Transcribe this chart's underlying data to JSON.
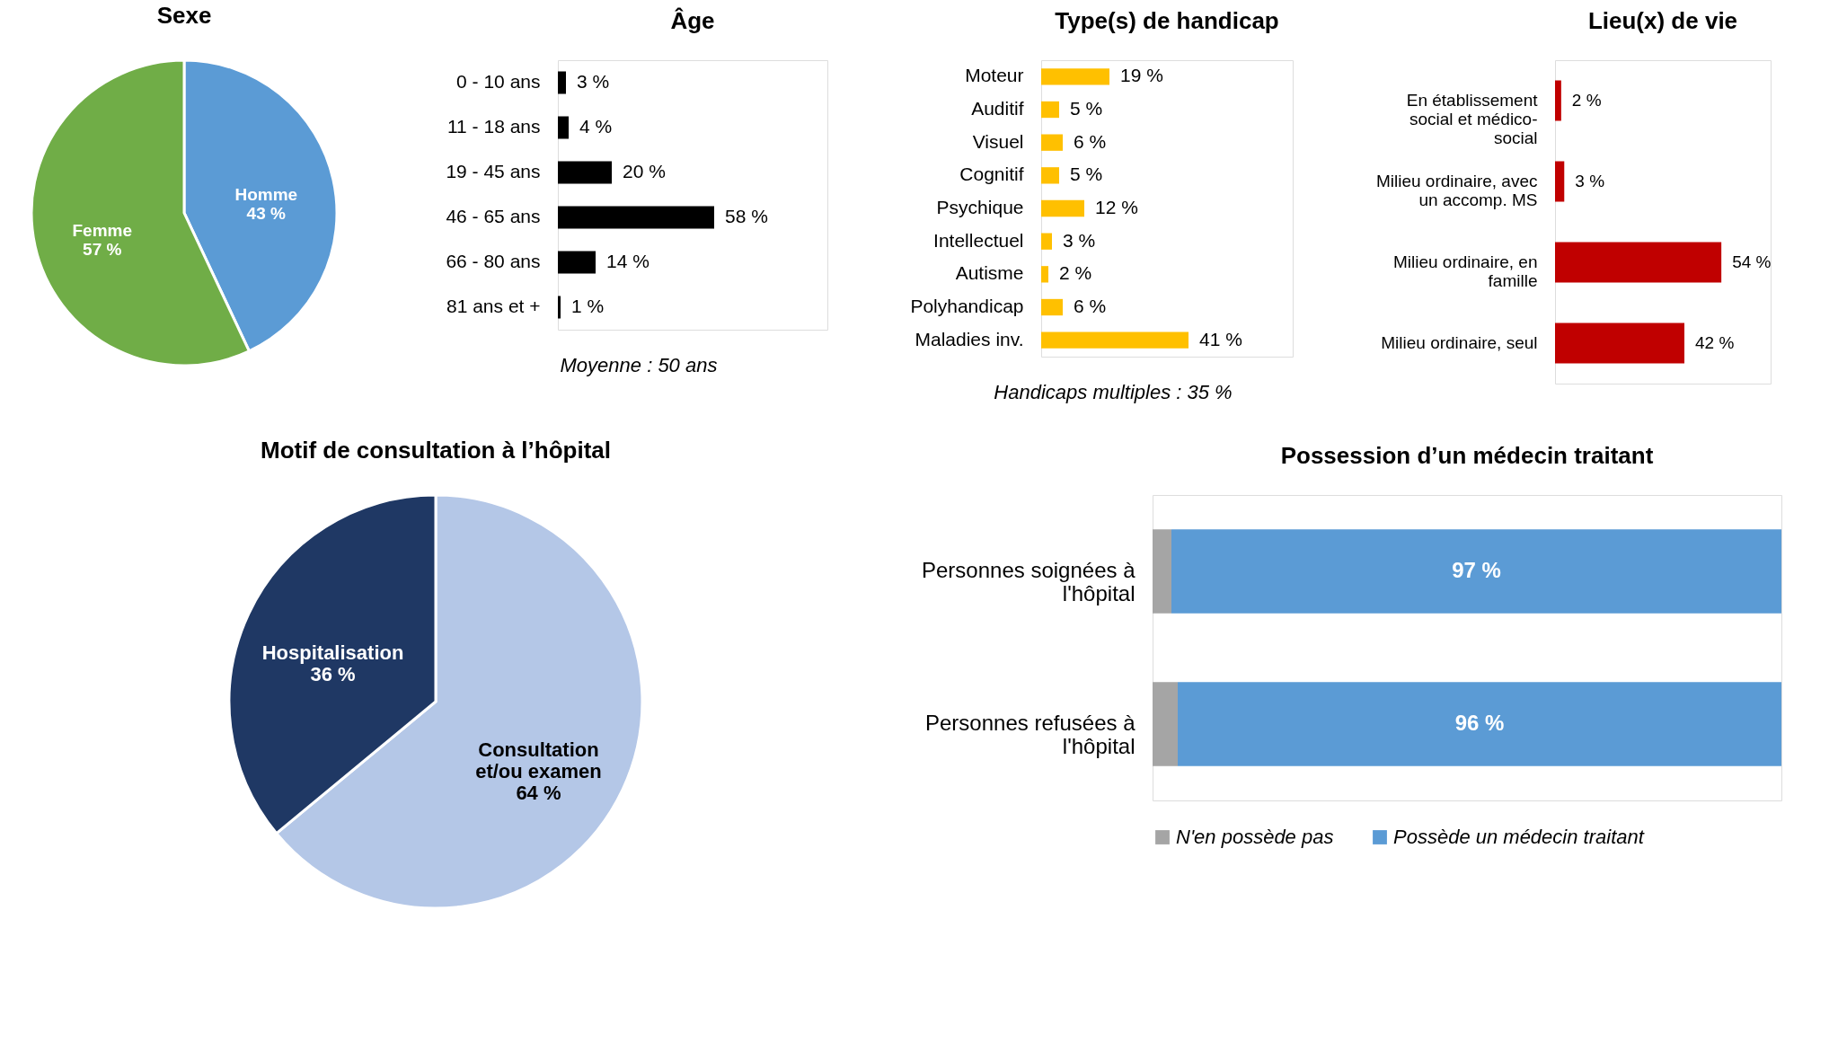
{
  "chart_data": [
    {
      "type": "pie",
      "title": "Sexe",
      "categories": [
        "Homme",
        "Femme"
      ],
      "values": [
        43,
        57
      ],
      "colors": [
        "#5b9bd5",
        "#70ad47"
      ],
      "value_labels": [
        "43 %",
        "57 %"
      ]
    },
    {
      "type": "bar",
      "orientation": "horizontal",
      "title": "Âge",
      "categories": [
        "0 - 10 ans",
        "11 - 18 ans",
        "19 - 45 ans",
        "46 - 65 ans",
        "66 - 80 ans",
        "81 ans et +"
      ],
      "values": [
        3,
        4,
        20,
        58,
        14,
        1
      ],
      "color": "#000000",
      "value_labels": [
        "3 %",
        "4 %",
        "20 %",
        "58 %",
        "14 %",
        "1 %"
      ],
      "xlim": [
        0,
        100
      ],
      "tick_labels": "y",
      "annotations": [
        "Moyenne : 50 ans"
      ]
    },
    {
      "type": "bar",
      "orientation": "horizontal",
      "title": "Type(s) de handicap",
      "categories": [
        "Moteur",
        "Auditif",
        "Visuel",
        "Cognitif",
        "Psychique",
        "Intellectuel",
        "Autisme",
        "Polyhandicap",
        "Maladies inv."
      ],
      "values": [
        19,
        5,
        6,
        5,
        12,
        3,
        2,
        6,
        41
      ],
      "color": "#ffc000",
      "value_labels": [
        "19 %",
        "5 %",
        "6 %",
        "5 %",
        "12 %",
        "3 %",
        "2 %",
        "6 %",
        "41 %"
      ],
      "xlim": [
        0,
        70
      ],
      "tick_labels": "y",
      "annotations": [
        "Handicaps multiples : 35 %"
      ]
    },
    {
      "type": "bar",
      "orientation": "horizontal",
      "title": "Lieu(x) de vie",
      "categories": [
        "En établissement social et médico-social",
        "Milieu ordinaire, avec un accomp. MS",
        "Milieu ordinaire, en famille",
        "Milieu ordinaire, seul"
      ],
      "values": [
        2,
        3,
        54,
        42
      ],
      "color": "#c00000",
      "value_labels": [
        "2 %",
        "3 %",
        "54 %",
        "42 %"
      ],
      "xlim": [
        0,
        70
      ],
      "tick_labels": "y"
    },
    {
      "type": "pie",
      "title": "Motif de consultation à l’hôpital",
      "categories": [
        "Consultation et/ou examen",
        "Hospitalisation"
      ],
      "values": [
        64,
        36
      ],
      "colors": [
        "#b4c7e7",
        "#1f3864"
      ],
      "value_labels": [
        "64 %",
        "36 %"
      ]
    },
    {
      "type": "bar",
      "orientation": "horizontal",
      "stacked": true,
      "title": "Possession d’un médecin traitant",
      "categories": [
        "Personnes soignées à l'hôpital",
        "Personnes refusées à l'hôpital"
      ],
      "xlim": [
        0,
        100
      ],
      "tick_labels": "y",
      "legend": "bottom",
      "series": [
        {
          "name": "N'en possède pas",
          "color": "#a5a5a5",
          "values": [
            3,
            4
          ],
          "value_labels": [
            null,
            null
          ]
        },
        {
          "name": "Possède un médecin traitant",
          "color": "#5b9bd5",
          "values": [
            97,
            96
          ],
          "value_labels": [
            "97 %",
            "96 %"
          ]
        }
      ]
    }
  ]
}
